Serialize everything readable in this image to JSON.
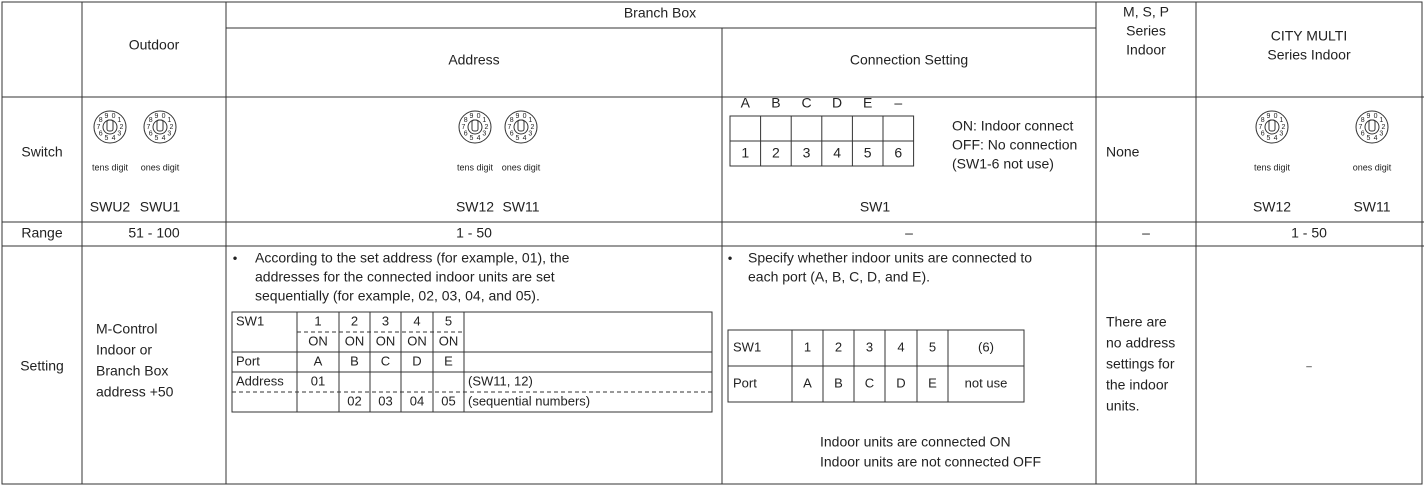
{
  "header": {
    "outdoor": "Outdoor",
    "branch_box": "Branch Box",
    "address": "Address",
    "connection_setting": "Connection Setting",
    "msp_indoor": [
      "M, S, P",
      "Series",
      "Indoor"
    ],
    "city_multi_indoor": [
      "CITY MULTI",
      "Series Indoor"
    ]
  },
  "dial_digits": [
    "0",
    "1",
    "2",
    "3",
    "4",
    "5",
    "6",
    "7",
    "8",
    "9"
  ],
  "rows": {
    "switch": {
      "label": "Switch",
      "outdoor": [
        {
          "caption": "tens digit",
          "name": "SWU2"
        },
        {
          "caption": "ones digit",
          "name": "SWU1"
        }
      ],
      "address": [
        {
          "caption": "tens digit",
          "name": "SW12"
        },
        {
          "caption": "ones digit",
          "name": "SW11"
        }
      ],
      "connection": {
        "ports": [
          "A",
          "B",
          "C",
          "D",
          "E",
          "–"
        ],
        "switches": [
          "1",
          "2",
          "3",
          "4",
          "5",
          "6"
        ],
        "notes": [
          "ON:   Indoor connect",
          "OFF:  No connection",
          "(SW1-6 not use)"
        ],
        "name": "SW1"
      },
      "msp": "None",
      "city_multi": [
        {
          "caption": "tens digit",
          "name": "SW12"
        },
        {
          "caption": "ones digit",
          "name": "SW11"
        }
      ]
    },
    "range": {
      "label": "Range",
      "outdoor": "51 - 100",
      "address": "1 - 50",
      "connection": "–",
      "msp": "–",
      "city_multi": "1 - 50"
    },
    "setting": {
      "label": "Setting",
      "outdoor": [
        "M-Control",
        "Indoor or",
        "Branch Box",
        "address +50"
      ],
      "address": {
        "bullet": "•",
        "text": [
          "According to the set address (for example, 01), the",
          "addresses for the connected indoor units are set",
          "sequentially (for example, 02, 03, 04, and 05)."
        ],
        "table": {
          "sw_label": "SW1",
          "sw_numbers": [
            "1",
            "2",
            "3",
            "4",
            "5"
          ],
          "sw_states": [
            "ON",
            "ON",
            "ON",
            "ON",
            "ON"
          ],
          "port_label": "Port",
          "ports": [
            "A",
            "B",
            "C",
            "D",
            "E"
          ],
          "address_label": "Address",
          "first_address": "01",
          "first_note": "(SW11, 12)",
          "next_addresses": [
            "02",
            "03",
            "04",
            "05"
          ],
          "next_note": "(sequential numbers)"
        }
      },
      "connection": {
        "bullet": "•",
        "text": [
          "Specify whether indoor units are connected to",
          "each port (A, B, C, D, and E)."
        ],
        "table": [
          [
            "SW1",
            "1",
            "2",
            "3",
            "4",
            "5",
            "(6)"
          ],
          [
            "Port",
            "A",
            "B",
            "C",
            "D",
            "E",
            "not use"
          ]
        ],
        "notes": [
          "Indoor units are connected ON",
          "Indoor units are not connected OFF"
        ]
      },
      "msp": [
        "There are",
        "no address",
        "settings for",
        "the indoor",
        "units."
      ],
      "city_multi": "–"
    }
  }
}
